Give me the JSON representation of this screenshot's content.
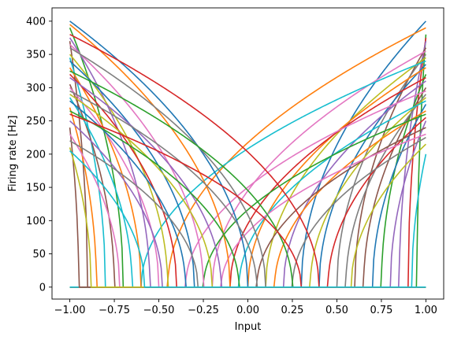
{
  "chart_data": {
    "type": "line",
    "title": "",
    "xlabel": "Input",
    "ylabel": "Firing rate [Hz]",
    "xlim": [
      -1.1,
      1.1
    ],
    "ylim": [
      -18,
      420
    ],
    "x_ticks": [
      -1.0,
      -0.75,
      -0.5,
      -0.25,
      0.0,
      0.25,
      0.5,
      0.75,
      1.0
    ],
    "x_tick_labels": [
      "−1.00",
      "−0.75",
      "−0.50",
      "−0.25",
      "0.00",
      "0.25",
      "0.50",
      "0.75",
      "1.00"
    ],
    "y_ticks": [
      0,
      50,
      100,
      150,
      200,
      250,
      300,
      350,
      400
    ],
    "y_tick_labels": [
      "0",
      "50",
      "100",
      "150",
      "200",
      "250",
      "300",
      "350",
      "400"
    ],
    "grid": false,
    "legend": "none",
    "palette": [
      "#1f77b4",
      "#ff7f0e",
      "#2ca02c",
      "#d62728",
      "#9467bd",
      "#8c564b",
      "#e377c2",
      "#7f7f7f",
      "#bcbd22",
      "#17becf"
    ],
    "x_range": [
      -1.0,
      1.0
    ],
    "model": "rectified power tuning curve: rate = max_rate * ((e*x - x_intercept)/(e - x_intercept))^0.5 for e*x > x_intercept, else 0; e = encoder direction (+1 rising, -1 falling)",
    "series": [
      {
        "encoder": 1,
        "x_intercept": 0.3,
        "max_rate": 400
      },
      {
        "encoder": 1,
        "x_intercept": -0.45,
        "max_rate": 390
      },
      {
        "encoder": 1,
        "x_intercept": 0.95,
        "max_rate": 380
      },
      {
        "encoder": 1,
        "x_intercept": 0.9,
        "max_rate": 375
      },
      {
        "encoder": 1,
        "x_intercept": 0.85,
        "max_rate": 370
      },
      {
        "encoder": 1,
        "x_intercept": 0.6,
        "max_rate": 360
      },
      {
        "encoder": 1,
        "x_intercept": -0.2,
        "max_rate": 355
      },
      {
        "encoder": 1,
        "x_intercept": 0.5,
        "max_rate": 350
      },
      {
        "encoder": 1,
        "x_intercept": 0.1,
        "max_rate": 345
      },
      {
        "encoder": 1,
        "x_intercept": -0.6,
        "max_rate": 340
      },
      {
        "encoder": 1,
        "x_intercept": 0.4,
        "max_rate": 335
      },
      {
        "encoder": 1,
        "x_intercept": 0.0,
        "max_rate": 330
      },
      {
        "encoder": 1,
        "x_intercept": 0.75,
        "max_rate": 320
      },
      {
        "encoder": 1,
        "x_intercept": -0.1,
        "max_rate": 315
      },
      {
        "encoder": 1,
        "x_intercept": 0.2,
        "max_rate": 310
      },
      {
        "encoder": 1,
        "x_intercept": 0.65,
        "max_rate": 300
      },
      {
        "encoder": 1,
        "x_intercept": -0.35,
        "max_rate": 295
      },
      {
        "encoder": 1,
        "x_intercept": 0.55,
        "max_rate": 290
      },
      {
        "encoder": 1,
        "x_intercept": 0.35,
        "max_rate": 285
      },
      {
        "encoder": 1,
        "x_intercept": -0.05,
        "max_rate": 280
      },
      {
        "encoder": 1,
        "x_intercept": 0.7,
        "max_rate": 275
      },
      {
        "encoder": 1,
        "x_intercept": 0.15,
        "max_rate": 265
      },
      {
        "encoder": 1,
        "x_intercept": -0.25,
        "max_rate": 260
      },
      {
        "encoder": 1,
        "x_intercept": 0.45,
        "max_rate": 255
      },
      {
        "encoder": 1,
        "x_intercept": 0.8,
        "max_rate": 250
      },
      {
        "encoder": 1,
        "x_intercept": 0.05,
        "max_rate": 240
      },
      {
        "encoder": 1,
        "x_intercept": -0.15,
        "max_rate": 230
      },
      {
        "encoder": 1,
        "x_intercept": 0.25,
        "max_rate": 225
      },
      {
        "encoder": 1,
        "x_intercept": 0.58,
        "max_rate": 215
      },
      {
        "encoder": 1,
        "x_intercept": 0.92,
        "max_rate": 200
      },
      {
        "encoder": -1,
        "x_intercept": 0.0,
        "max_rate": 400
      },
      {
        "encoder": -1,
        "x_intercept": 0.1,
        "max_rate": 395
      },
      {
        "encoder": -1,
        "x_intercept": 0.7,
        "max_rate": 390
      },
      {
        "encoder": -1,
        "x_intercept": -0.4,
        "max_rate": 380
      },
      {
        "encoder": -1,
        "x_intercept": 0.55,
        "max_rate": 375
      },
      {
        "encoder": -1,
        "x_intercept": 0.9,
        "max_rate": 370
      },
      {
        "encoder": -1,
        "x_intercept": 0.25,
        "max_rate": 365
      },
      {
        "encoder": -1,
        "x_intercept": -0.1,
        "max_rate": 360
      },
      {
        "encoder": -1,
        "x_intercept": 0.45,
        "max_rate": 350
      },
      {
        "encoder": -1,
        "x_intercept": 0.8,
        "max_rate": 345
      },
      {
        "encoder": -1,
        "x_intercept": 0.3,
        "max_rate": 340
      },
      {
        "encoder": -1,
        "x_intercept": 0.6,
        "max_rate": 330
      },
      {
        "encoder": -1,
        "x_intercept": -0.25,
        "max_rate": 325
      },
      {
        "encoder": -1,
        "x_intercept": 0.4,
        "max_rate": 320
      },
      {
        "encoder": -1,
        "x_intercept": 0.15,
        "max_rate": 315
      },
      {
        "encoder": -1,
        "x_intercept": 0.75,
        "max_rate": 305
      },
      {
        "encoder": -1,
        "x_intercept": 0.5,
        "max_rate": 300
      },
      {
        "encoder": -1,
        "x_intercept": -0.05,
        "max_rate": 295
      },
      {
        "encoder": -1,
        "x_intercept": 0.2,
        "max_rate": 290
      },
      {
        "encoder": -1,
        "x_intercept": 0.65,
        "max_rate": 285
      },
      {
        "encoder": -1,
        "x_intercept": 0.35,
        "max_rate": 280
      },
      {
        "encoder": -1,
        "x_intercept": 0.85,
        "max_rate": 270
      },
      {
        "encoder": -1,
        "x_intercept": 0.05,
        "max_rate": 265
      },
      {
        "encoder": -1,
        "x_intercept": -0.3,
        "max_rate": 260
      },
      {
        "encoder": -1,
        "x_intercept": 0.48,
        "max_rate": 250
      },
      {
        "encoder": -1,
        "x_intercept": 0.95,
        "max_rate": 240
      },
      {
        "encoder": -1,
        "x_intercept": 0.72,
        "max_rate": 230
      },
      {
        "encoder": -1,
        "x_intercept": 0.28,
        "max_rate": 220
      },
      {
        "encoder": -1,
        "x_intercept": 0.88,
        "max_rate": 210
      },
      {
        "encoder": -1,
        "x_intercept": 0.58,
        "max_rate": 205
      }
    ]
  }
}
